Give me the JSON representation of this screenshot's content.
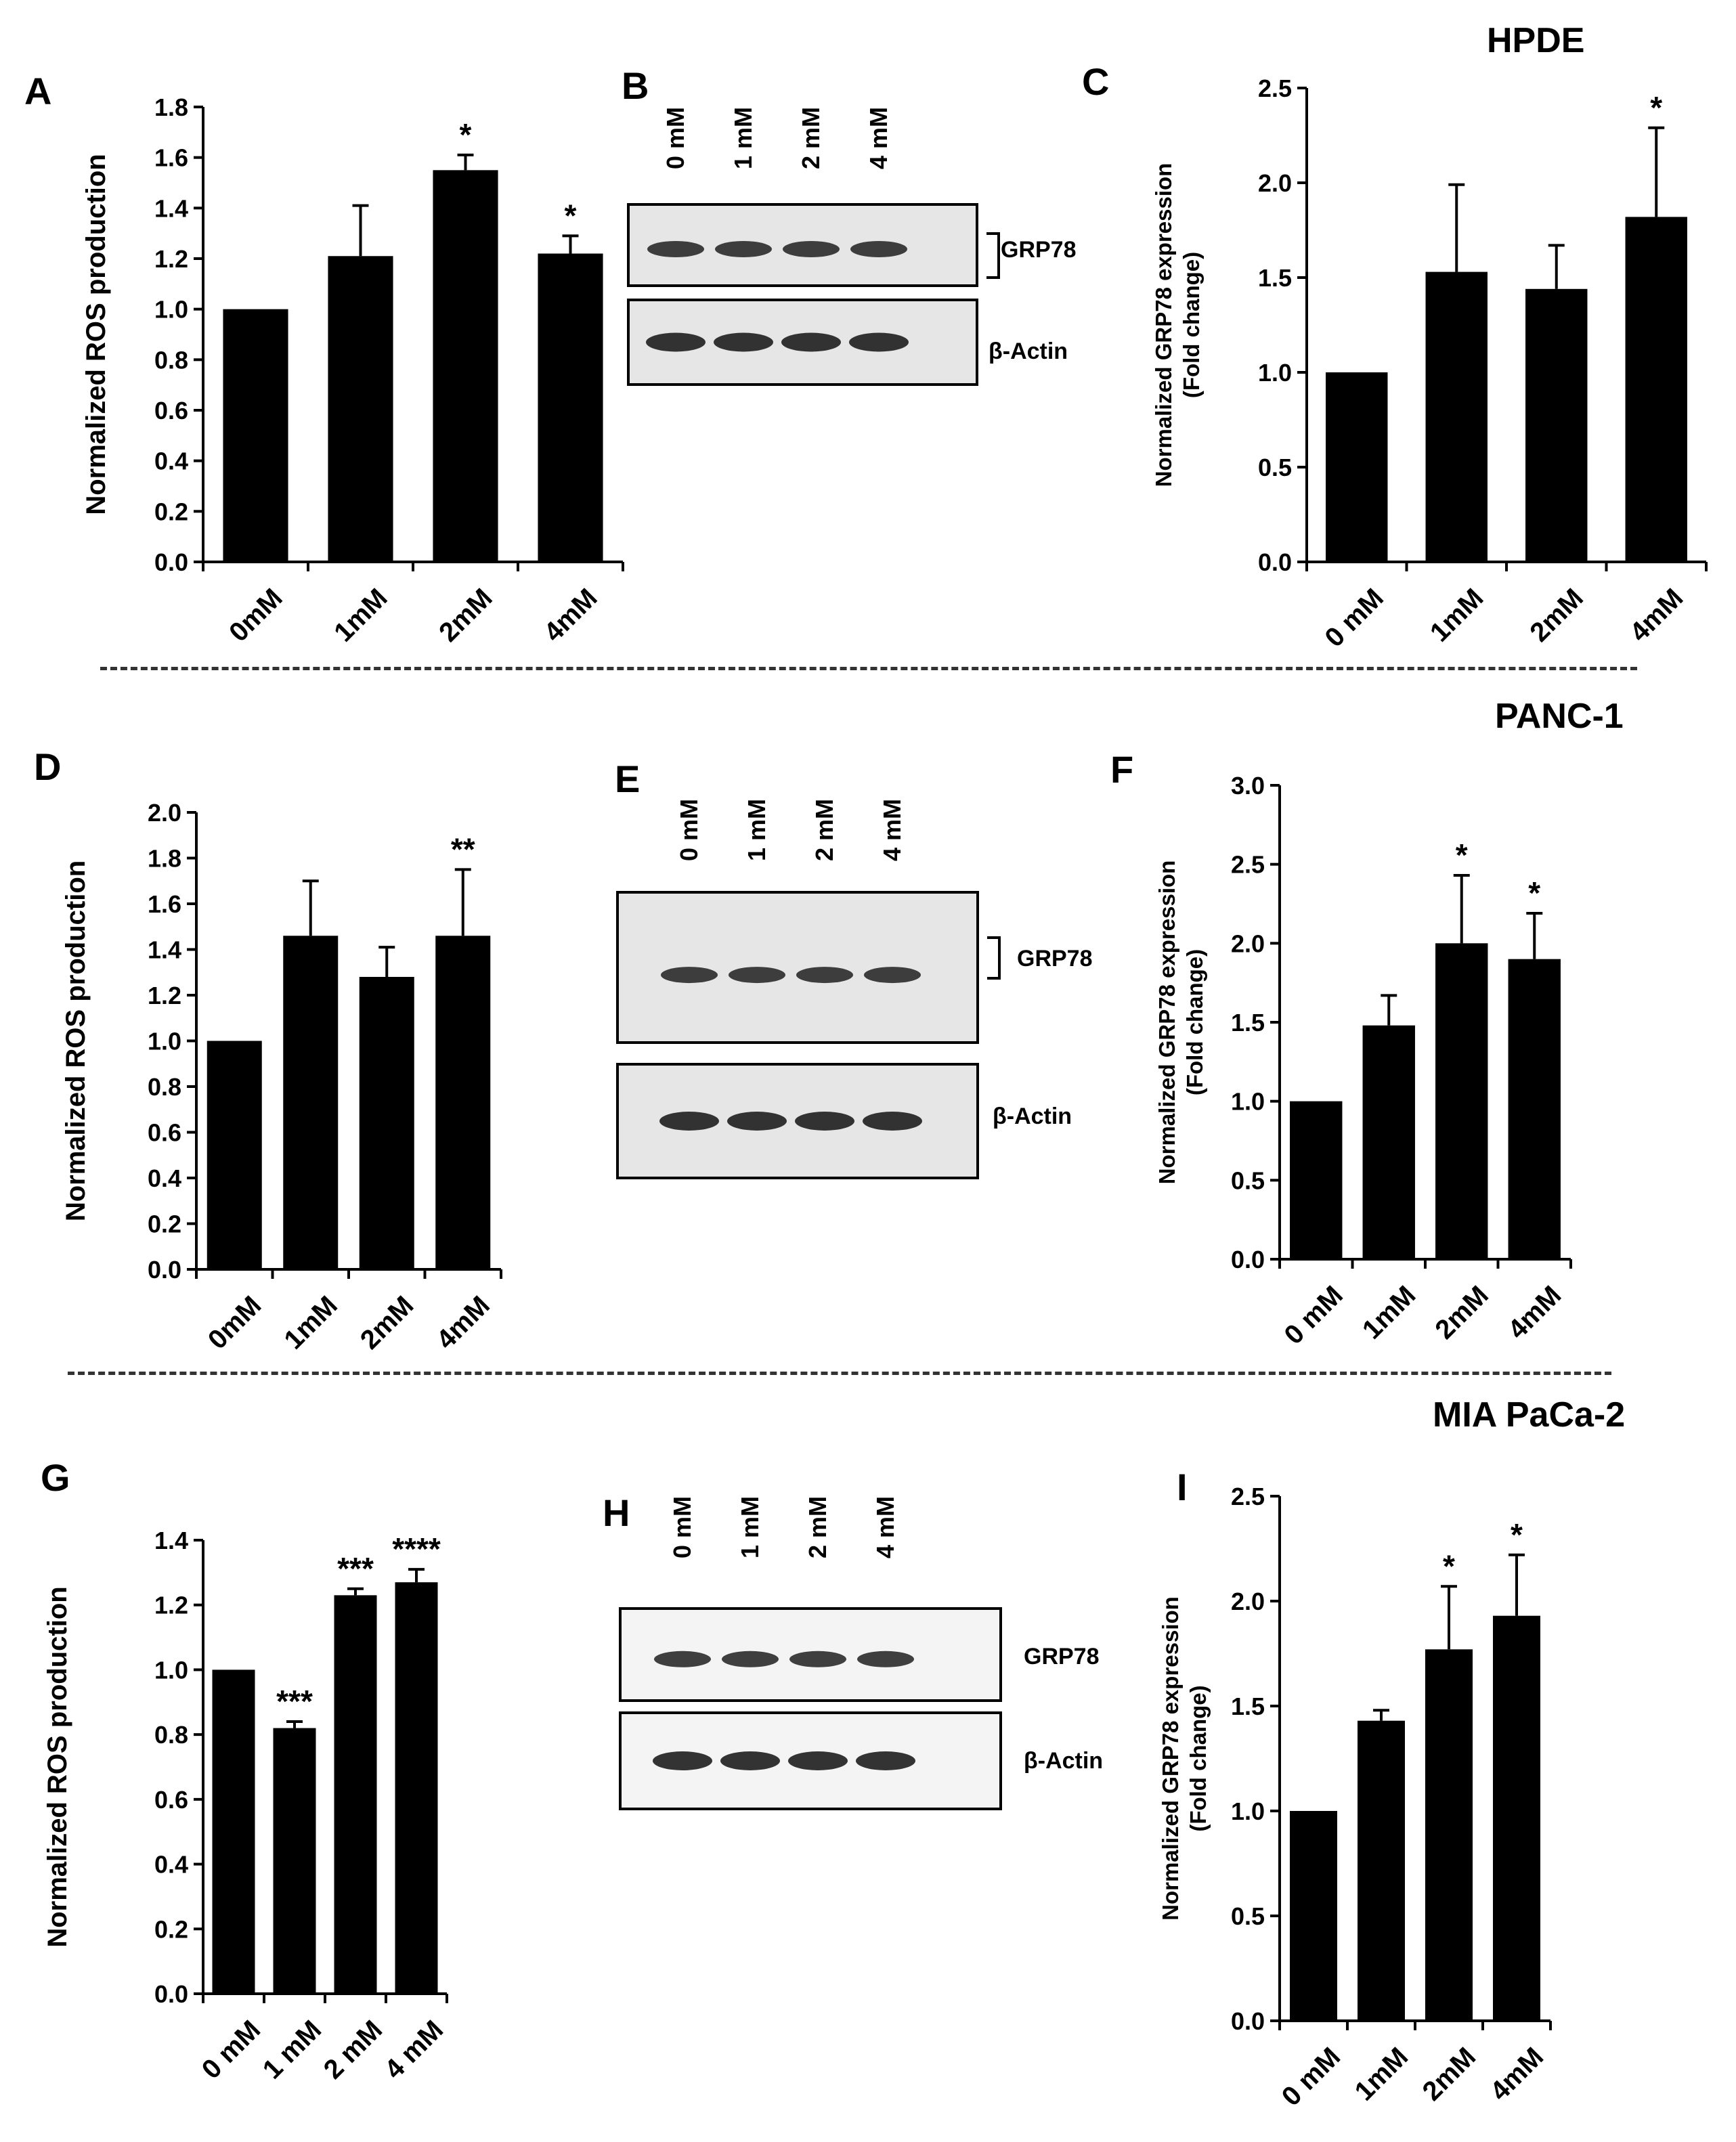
{
  "figure": {
    "cell_lines": [
      "HPDE",
      "PANC-1",
      "MIA PaCa-2"
    ],
    "colors": {
      "bar": "#000000",
      "blot_bg": "#e6e6e6",
      "blot_bg_light": "#f4f4f4",
      "band": "#1e1e1e"
    }
  },
  "chart_data": [
    {
      "panel": "A",
      "type": "bar",
      "categories": [
        "0mM",
        "1mM",
        "2mM",
        "4mM"
      ],
      "values": [
        1.0,
        1.21,
        1.55,
        1.22
      ],
      "errors": [
        0.01,
        0.2,
        0.06,
        0.07
      ],
      "annotations": [
        "",
        "",
        "*",
        "*"
      ],
      "ylabel": "Normalized ROS production",
      "ylim": [
        0,
        1.8
      ],
      "yticks": [
        "0.0",
        "0.2",
        "0.4",
        "0.6",
        "0.8",
        "1.0",
        "1.2",
        "1.4",
        "1.6",
        "1.8"
      ]
    },
    {
      "panel": "C",
      "type": "bar",
      "categories": [
        "0 mM",
        "1mM",
        "2mM",
        "4mM"
      ],
      "values": [
        1.0,
        1.53,
        1.44,
        1.82
      ],
      "errors": [
        0.01,
        0.46,
        0.23,
        0.47
      ],
      "annotations": [
        "",
        "",
        "",
        "*"
      ],
      "ylabel": "Normalized GRP78 expression\n(Fold change)",
      "ylim": [
        0,
        2.5
      ],
      "yticks": [
        "0.0",
        "0.5",
        "1.0",
        "1.5",
        "2.0",
        "2.5"
      ]
    },
    {
      "panel": "D",
      "type": "bar",
      "categories": [
        "0mM",
        "1mM",
        "2mM",
        "4mM"
      ],
      "values": [
        1.0,
        1.46,
        1.28,
        1.46
      ],
      "errors": [
        0.01,
        0.24,
        0.13,
        0.29
      ],
      "annotations": [
        "",
        "",
        "",
        "**"
      ],
      "ylabel": "Normalized ROS production",
      "ylim": [
        0,
        2.0
      ],
      "yticks": [
        "0.0",
        "0.2",
        "0.4",
        "0.6",
        "0.8",
        "1.0",
        "1.2",
        "1.4",
        "1.6",
        "1.8",
        "2.0"
      ]
    },
    {
      "panel": "F",
      "type": "bar",
      "categories": [
        "0 mM",
        "1mM",
        "2mM",
        "4mM"
      ],
      "values": [
        1.0,
        1.48,
        2.0,
        1.9
      ],
      "errors": [
        0.01,
        0.19,
        0.43,
        0.29
      ],
      "annotations": [
        "",
        "",
        "*",
        "*"
      ],
      "ylabel": "Normalized GRP78 expression\n(Fold change)",
      "ylim": [
        0,
        3.0
      ],
      "yticks": [
        "0.0",
        "0.5",
        "1.0",
        "1.5",
        "2.0",
        "2.5",
        "3.0"
      ]
    },
    {
      "panel": "G",
      "type": "bar",
      "categories": [
        "0 mM",
        "1 mM",
        "2 mM",
        "4 mM"
      ],
      "values": [
        1.0,
        0.82,
        1.23,
        1.27
      ],
      "errors": [
        0.005,
        0.02,
        0.02,
        0.04
      ],
      "annotations": [
        "",
        "***",
        "***",
        "****"
      ],
      "ylabel": "Normalized ROS production",
      "ylim": [
        0,
        1.4
      ],
      "yticks": [
        "0.0",
        "0.2",
        "0.4",
        "0.6",
        "0.8",
        "1.0",
        "1.2",
        "1.4"
      ]
    },
    {
      "panel": "I",
      "type": "bar",
      "categories": [
        "0 mM",
        "1mM",
        "2mM",
        "4mM"
      ],
      "values": [
        1.0,
        1.43,
        1.77,
        1.93
      ],
      "errors": [
        0.01,
        0.05,
        0.3,
        0.29
      ],
      "annotations": [
        "",
        "",
        "*",
        "*"
      ],
      "ylabel": "Normalized GRP78 expression\n(Fold change)",
      "ylim": [
        0,
        2.5
      ],
      "yticks": [
        "0.0",
        "0.5",
        "1.0",
        "1.5",
        "2.0",
        "2.5"
      ]
    }
  ],
  "blots": [
    {
      "panel": "B",
      "lanes": [
        "0 mM",
        "1 mM",
        "2 mM",
        "4 mM"
      ],
      "targets": [
        "GRP78",
        "β-Actin"
      ],
      "bracket": true
    },
    {
      "panel": "E",
      "lanes": [
        "0 mM",
        "1 mM",
        "2 mM",
        "4 mM"
      ],
      "targets": [
        "GRP78",
        "β-Actin"
      ],
      "bracket": true
    },
    {
      "panel": "H",
      "lanes": [
        "0 mM",
        "1 mM",
        "2 mM",
        "4 mM"
      ],
      "targets": [
        "GRP78",
        "β-Actin"
      ],
      "bracket": false
    }
  ]
}
